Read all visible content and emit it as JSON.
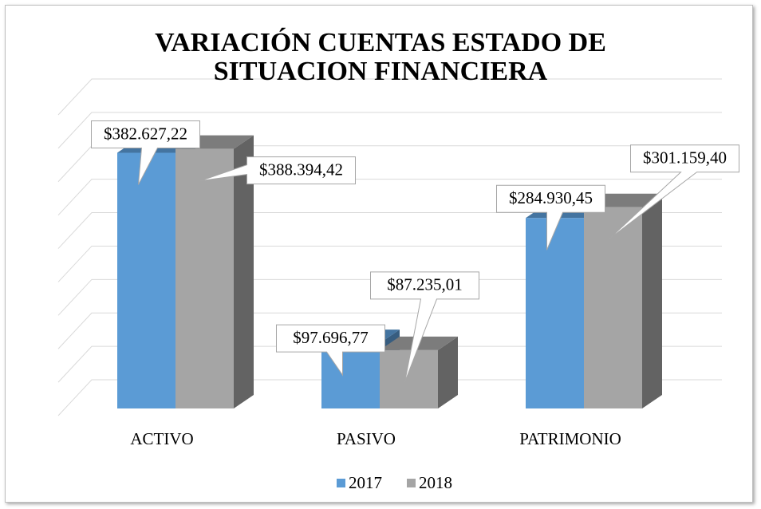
{
  "chart_data": {
    "type": "bar3d",
    "title": "VARIACIÓN CUENTAS ESTADO DE SITUACION FINANCIERA",
    "categories": [
      "ACTIVO",
      "PASIVO",
      "PATRIMONIO"
    ],
    "series": [
      {
        "name": "2017",
        "color": "#5b9bd5",
        "values": [
          382627.22,
          97696.77,
          284930.45
        ],
        "value_labels": [
          "$382.627,22",
          "$97.696,77",
          "$284.930,45"
        ]
      },
      {
        "name": "2018",
        "color": "#a5a5a5",
        "values": [
          388394.42,
          87235.01,
          301159.4
        ],
        "value_labels": [
          "$388.394,42",
          "$87.235,01",
          "$301.159,40"
        ]
      }
    ],
    "ylim": [
      0,
      450000
    ],
    "yticks": [
      0,
      50000,
      100000,
      150000,
      200000,
      250000,
      300000,
      350000,
      400000,
      450000
    ],
    "grid": true,
    "legend": "bottom"
  }
}
